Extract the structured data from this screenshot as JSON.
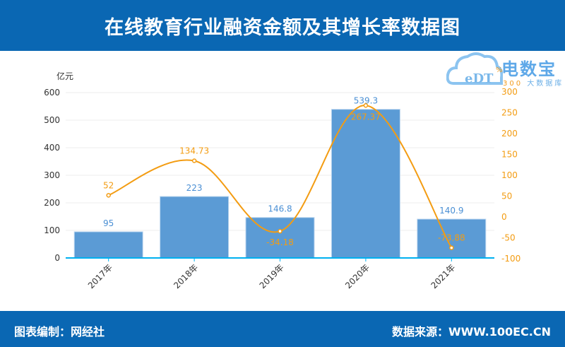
{
  "title": "在线教育行业融资金额及其增长率数据图",
  "footer": {
    "left": "图表编制：网经社",
    "right": "数据来源：WWW.100EC.CN"
  },
  "logo": {
    "name": "电数宝",
    "sub_num": "300",
    "sub_text": "大数据库",
    "mark": "eDT%"
  },
  "chart_data": {
    "type": "bar+line",
    "categories": [
      "2017年",
      "2018年",
      "2019年",
      "2020年",
      "2021年"
    ],
    "ylabel": "亿元",
    "ylim": [
      0,
      600
    ],
    "yticks": [
      0,
      100,
      200,
      300,
      400,
      500,
      600
    ],
    "y2lim": [
      -100,
      300
    ],
    "y2ticks": [
      -100,
      -50,
      0,
      50,
      100,
      150,
      200,
      250,
      300
    ],
    "series": [
      {
        "type": "bar",
        "values": [
          95,
          223,
          146.8,
          539.3,
          140.9
        ],
        "labels": [
          "95",
          "223",
          "146.8",
          "539.3",
          "140.9"
        ],
        "color": "#5b9bd5"
      },
      {
        "type": "line",
        "axis": "right",
        "values": [
          52,
          134.73,
          -34.18,
          267.37,
          -73.88
        ],
        "labels": [
          "52",
          "134.73",
          "-34.18",
          "267.37",
          "-73.88"
        ],
        "color": "#f39c12"
      }
    ],
    "grid": true
  }
}
